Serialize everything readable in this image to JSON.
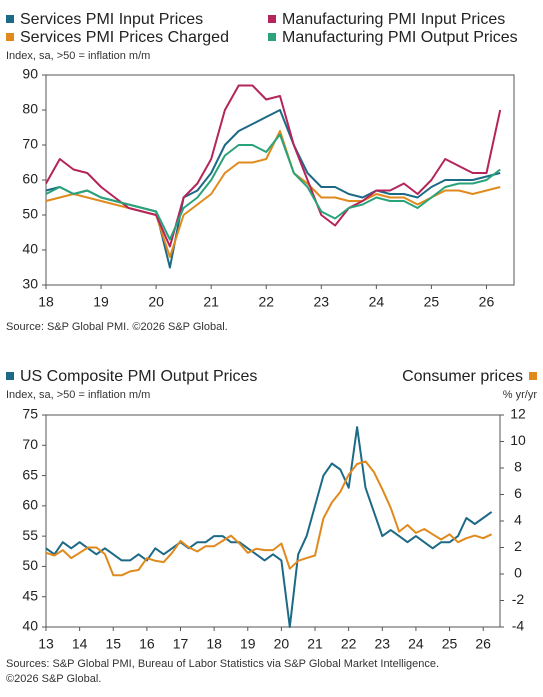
{
  "chart_data": [
    {
      "type": "line",
      "subtitle": "Index, sa, >50 = inflation m/m",
      "source": "Source: S&P Global PMI. ©2026 S&P Global.",
      "x": [
        18,
        18.25,
        18.5,
        18.75,
        19,
        19.25,
        19.5,
        19.75,
        20,
        20.25,
        20.5,
        20.75,
        21,
        21.25,
        21.5,
        21.75,
        22,
        22.25,
        22.5,
        22.75,
        23,
        23.25,
        23.5,
        23.75,
        24,
        24.25,
        24.5,
        24.75,
        25,
        25.25,
        25.5,
        25.75,
        26,
        26.25
      ],
      "xlim": [
        18,
        26.5
      ],
      "xticks": [
        18,
        19,
        20,
        21,
        22,
        23,
        24,
        25,
        26
      ],
      "ylim": [
        30,
        90
      ],
      "yticks": [
        30,
        40,
        50,
        60,
        70,
        80,
        90
      ],
      "series": [
        {
          "name": "Services PMI Input Prices",
          "color": "#1d6a86",
          "values": [
            57,
            58,
            56,
            57,
            55,
            54,
            53,
            52,
            51,
            35,
            55,
            57,
            62,
            70,
            74,
            76,
            78,
            80,
            70,
            62,
            58,
            58,
            56,
            55,
            57,
            56,
            56,
            55,
            58,
            60,
            60,
            60,
            61,
            62
          ]
        },
        {
          "name": "Services PMI Prices Charged",
          "color": "#e08a1e",
          "values": [
            54,
            55,
            56,
            55,
            54,
            53,
            52,
            51,
            50,
            38,
            50,
            53,
            56,
            62,
            65,
            65,
            66,
            74,
            62,
            59,
            55,
            55,
            54,
            54,
            56,
            55,
            55,
            53,
            55,
            57,
            57,
            56,
            57,
            58
          ]
        },
        {
          "name": "Manufacturing PMI Input Prices",
          "color": "#b5245a",
          "values": [
            59,
            66,
            63,
            62,
            58,
            55,
            52,
            51,
            50,
            41,
            55,
            59,
            66,
            80,
            87,
            87,
            83,
            84,
            70,
            60,
            50,
            47,
            52,
            54,
            57,
            57,
            59,
            56,
            60,
            66,
            64,
            62,
            62,
            80
          ]
        },
        {
          "name": "Manufacturing PMI Output Prices",
          "color": "#2aa37a",
          "values": [
            56,
            58,
            56,
            57,
            55,
            54,
            53,
            52,
            51,
            43,
            52,
            55,
            60,
            67,
            70,
            70,
            68,
            73,
            62,
            58,
            51,
            49,
            52,
            53,
            55,
            54,
            54,
            52,
            55,
            58,
            59,
            59,
            60,
            63
          ]
        }
      ]
    },
    {
      "type": "line",
      "y_label": "Index, sa, >50 = inflation m/m",
      "y2_label": "% yr/yr",
      "source": [
        "Sources: S&P Global PMI, Bureau of Labor Statistics via S&P Global Market Intelligence.",
        "©2026 S&P Global."
      ],
      "x": [
        13,
        13.25,
        13.5,
        13.75,
        14,
        14.25,
        14.5,
        14.75,
        15,
        15.25,
        15.5,
        15.75,
        16,
        16.25,
        16.5,
        16.75,
        17,
        17.25,
        17.5,
        17.75,
        18,
        18.25,
        18.5,
        18.75,
        19,
        19.25,
        19.5,
        19.75,
        20,
        20.25,
        20.5,
        20.75,
        21,
        21.25,
        21.5,
        21.75,
        22,
        22.25,
        22.5,
        22.75,
        23,
        23.25,
        23.5,
        23.75,
        24,
        24.25,
        24.5,
        24.75,
        25,
        25.25,
        25.5,
        25.75,
        26,
        26.25
      ],
      "xlim": [
        13,
        26.5
      ],
      "xticks": [
        13,
        14,
        15,
        16,
        17,
        18,
        19,
        20,
        21,
        22,
        23,
        24,
        25,
        26
      ],
      "ylim": [
        40,
        75
      ],
      "yticks": [
        40,
        45,
        50,
        55,
        60,
        65,
        70,
        75
      ],
      "y2lim": [
        -4,
        12
      ],
      "y2ticks": [
        -4,
        -2,
        0,
        2,
        4,
        6,
        8,
        10,
        12
      ],
      "series": [
        {
          "name": "US Composite PMI Output Prices",
          "color": "#1d6a86",
          "values": [
            53,
            52,
            54,
            53,
            54,
            53,
            52,
            53,
            52,
            51,
            51,
            52,
            51,
            53,
            52,
            53,
            54,
            53,
            54,
            54,
            55,
            55,
            54,
            54,
            53,
            52,
            51,
            52,
            51,
            40,
            52,
            55,
            60,
            65,
            67,
            66,
            63,
            73,
            63,
            59,
            55,
            56,
            55,
            54,
            55,
            54,
            53,
            54,
            54,
            55,
            58,
            57,
            58,
            59
          ]
        },
        {
          "name": "Consumer prices",
          "color": "#e08a1e",
          "axis": "y2",
          "values": [
            1.6,
            1.4,
            1.8,
            1.2,
            1.6,
            2.0,
            2.0,
            1.5,
            -0.1,
            -0.1,
            0.2,
            0.3,
            1.2,
            1.0,
            0.9,
            1.6,
            2.5,
            2.0,
            1.7,
            2.1,
            2.1,
            2.5,
            2.9,
            2.3,
            1.6,
            1.9,
            1.8,
            1.8,
            2.3,
            0.4,
            1.0,
            1.2,
            1.4,
            4.2,
            5.4,
            6.2,
            7.5,
            8.3,
            8.5,
            7.7,
            6.4,
            5.0,
            3.2,
            3.7,
            3.1,
            3.4,
            3.0,
            2.6,
            3.0,
            2.4,
            2.7,
            2.9,
            2.7,
            3.0
          ]
        }
      ]
    }
  ]
}
